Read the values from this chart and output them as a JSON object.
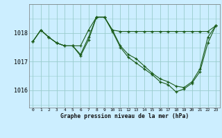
{
  "title": "Graphe pression niveau de la mer (hPa)",
  "background_color": "#cceeff",
  "grid_color": "#99cccc",
  "line_color": "#1a5c1a",
  "x_ticks": [
    0,
    1,
    2,
    3,
    4,
    5,
    6,
    7,
    8,
    9,
    10,
    11,
    12,
    13,
    14,
    15,
    16,
    17,
    18,
    19,
    20,
    21,
    22,
    23
  ],
  "ylim": [
    1015.4,
    1019.0
  ],
  "yticks": [
    1016,
    1017,
    1018
  ],
  "series": [
    [
      1017.7,
      1018.1,
      1017.85,
      1017.65,
      1017.55,
      1017.55,
      1017.55,
      1018.1,
      1018.55,
      1018.55,
      1018.1,
      1018.05,
      1018.05,
      1018.05,
      1018.05,
      1018.05,
      1018.05,
      1018.05,
      1018.05,
      1018.05,
      1018.05,
      1018.05,
      1018.05,
      1018.25
    ],
    [
      1017.7,
      1018.1,
      1017.85,
      1017.65,
      1017.55,
      1017.55,
      1017.25,
      1017.85,
      1018.55,
      1018.55,
      1018.1,
      1017.55,
      1017.25,
      1017.1,
      1016.85,
      1016.6,
      1016.4,
      1016.3,
      1016.15,
      1016.1,
      1016.3,
      1016.75,
      1017.85,
      1018.25
    ],
    [
      1017.7,
      1018.1,
      1017.85,
      1017.65,
      1017.55,
      1017.55,
      1017.2,
      1017.75,
      1018.55,
      1018.55,
      1018.05,
      1017.5,
      1017.15,
      1016.95,
      1016.75,
      1016.55,
      1016.3,
      1016.2,
      1015.95,
      1016.05,
      1016.25,
      1016.65,
      1017.65,
      1018.25
    ]
  ]
}
